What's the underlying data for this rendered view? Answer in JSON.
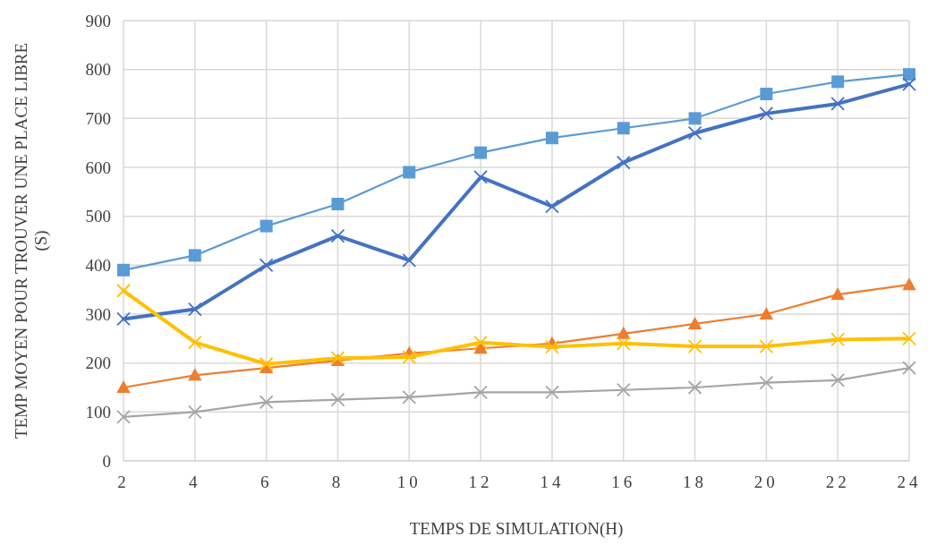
{
  "chart_data": {
    "type": "line",
    "xlabel": "TEMPS DE SIMULATION(H)",
    "ylabel": "TEMP MOYEN POUR TROUVER UNE PLACE LIBRE (S)",
    "x": [
      2,
      4,
      6,
      8,
      10,
      12,
      14,
      16,
      18,
      20,
      22,
      24
    ],
    "xlim": [
      2,
      24
    ],
    "xticks": [
      2,
      4,
      6,
      8,
      10,
      12,
      14,
      16,
      18,
      20,
      22,
      24
    ],
    "ylim": [
      0,
      900
    ],
    "yticks": [
      0,
      100,
      200,
      300,
      400,
      500,
      600,
      700,
      800,
      900
    ],
    "grid": true,
    "line_style": "solid",
    "series": [
      {
        "color": "#5b9bd5",
        "marker": "square",
        "values": [
          390,
          420,
          480,
          525,
          590,
          630,
          660,
          680,
          700,
          750,
          775,
          790
        ]
      },
      {
        "color": "#4472c4",
        "marker": "cross",
        "values": [
          290,
          310,
          400,
          460,
          410,
          580,
          520,
          610,
          670,
          710,
          730,
          770
        ]
      },
      {
        "color": "#ed7d31",
        "marker": "triangle",
        "values": [
          150,
          175,
          190,
          205,
          220,
          230,
          240,
          260,
          280,
          300,
          340,
          360
        ]
      },
      {
        "color": "#a5a5a5",
        "marker": "cross",
        "values": [
          90,
          100,
          120,
          125,
          130,
          140,
          140,
          145,
          150,
          160,
          165,
          190
        ]
      },
      {
        "color": "#ffc000",
        "marker": "cross",
        "values": [
          348,
          242,
          198,
          210,
          212,
          242,
          233,
          240,
          234,
          234,
          248,
          250
        ]
      }
    ]
  }
}
